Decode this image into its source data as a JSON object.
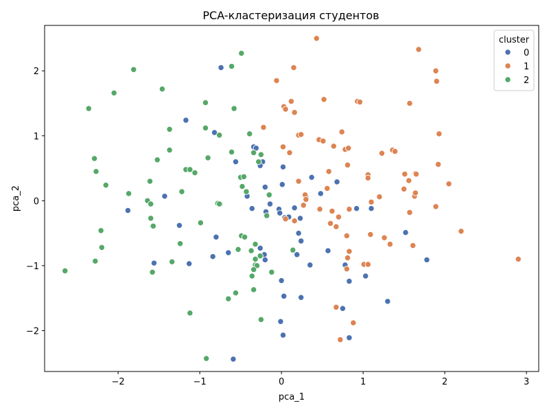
{
  "chart_data": {
    "type": "scatter",
    "title": "PCA-кластеризация студентов",
    "xlabel": "pca_1",
    "ylabel": "pca_2",
    "xlim": [
      -2.9,
      3.15
    ],
    "ylim": [
      -2.63,
      2.7
    ],
    "xticks": [
      -2,
      -1,
      0,
      1,
      2,
      3
    ],
    "yticks": [
      -2,
      -1,
      0,
      1,
      2
    ],
    "xtick_labels": [
      "−2",
      "−1",
      "0",
      "1",
      "2",
      "3"
    ],
    "ytick_labels": [
      "−2",
      "−1",
      "0",
      "1",
      "2"
    ],
    "grid": false,
    "legend": {
      "title": "cluster",
      "placement": "top-right",
      "entries": [
        "0",
        "1",
        "2"
      ]
    },
    "series": [
      {
        "name": "0",
        "color": "#4c72b0",
        "points": [
          [
            -0.74,
            2.05
          ],
          [
            -1.17,
            1.24
          ],
          [
            -0.82,
            1.05
          ],
          [
            -0.34,
            0.83
          ],
          [
            -0.31,
            0.81
          ],
          [
            -0.23,
            0.6
          ],
          [
            -0.26,
            0.54
          ],
          [
            -0.56,
            0.6
          ],
          [
            -0.2,
            0.21
          ],
          [
            0.02,
            0.52
          ],
          [
            0.01,
            0.25
          ],
          [
            0.37,
            0.36
          ],
          [
            0.3,
            0.06
          ],
          [
            0.48,
            0.11
          ],
          [
            0.68,
            0.29
          ],
          [
            -0.75,
            -0.05
          ],
          [
            -0.42,
            0.07
          ],
          [
            -0.36,
            -0.12
          ],
          [
            -1.88,
            -0.15
          ],
          [
            -1.43,
            0.07
          ],
          [
            -0.19,
            -0.17
          ],
          [
            -0.14,
            -0.05
          ],
          [
            -0.03,
            -0.13
          ],
          [
            -0.02,
            -0.19
          ],
          [
            0.04,
            -0.26
          ],
          [
            0.09,
            -0.25
          ],
          [
            0.16,
            -0.11
          ],
          [
            0.23,
            -0.27
          ],
          [
            0.92,
            -0.12
          ],
          [
            1.1,
            -0.12
          ],
          [
            -1.25,
            -0.38
          ],
          [
            -0.8,
            -0.56
          ],
          [
            -0.65,
            -0.8
          ],
          [
            -0.84,
            -0.86
          ],
          [
            -0.26,
            -0.73
          ],
          [
            -0.21,
            -0.83
          ],
          [
            -0.2,
            -0.91
          ],
          [
            0.19,
            -0.83
          ],
          [
            0.21,
            -0.5
          ],
          [
            0.24,
            -0.62
          ],
          [
            0.35,
            -0.99
          ],
          [
            0.57,
            -0.77
          ],
          [
            0.78,
            -0.99
          ],
          [
            1.03,
            -1.16
          ],
          [
            -1.13,
            -0.97
          ],
          [
            -1.56,
            -0.96
          ],
          [
            0.0,
            -1.23
          ],
          [
            0.03,
            -1.47
          ],
          [
            0.24,
            -1.49
          ],
          [
            0.75,
            -1.66
          ],
          [
            0.83,
            -1.24
          ],
          [
            1.3,
            -1.55
          ],
          [
            1.52,
            -0.49
          ],
          [
            1.78,
            -0.91
          ],
          [
            -0.01,
            -1.86
          ],
          [
            0.02,
            -2.07
          ],
          [
            0.83,
            -2.11
          ],
          [
            -0.59,
            -2.44
          ]
        ]
      },
      {
        "name": "1",
        "color": "#dd8452",
        "points": [
          [
            0.43,
            2.5
          ],
          [
            1.68,
            2.33
          ],
          [
            1.89,
            2.0
          ],
          [
            -0.06,
            1.85
          ],
          [
            0.15,
            2.05
          ],
          [
            1.9,
            1.84
          ],
          [
            0.52,
            1.56
          ],
          [
            0.12,
            1.53
          ],
          [
            0.03,
            1.45
          ],
          [
            0.05,
            1.41
          ],
          [
            0.16,
            1.36
          ],
          [
            0.93,
            1.53
          ],
          [
            0.96,
            1.52
          ],
          [
            1.57,
            1.5
          ],
          [
            -0.22,
            1.13
          ],
          [
            0.74,
            1.06
          ],
          [
            0.21,
            1.01
          ],
          [
            0.24,
            1.02
          ],
          [
            0.46,
            0.94
          ],
          [
            0.51,
            0.92
          ],
          [
            0.64,
            0.84
          ],
          [
            0.78,
            0.79
          ],
          [
            0.82,
            0.81
          ],
          [
            1.23,
            0.73
          ],
          [
            1.93,
            1.03
          ],
          [
            1.36,
            0.78
          ],
          [
            1.39,
            0.76
          ],
          [
            0.02,
            0.83
          ],
          [
            0.1,
            0.74
          ],
          [
            0.81,
            0.55
          ],
          [
            1.92,
            0.56
          ],
          [
            0.58,
            0.45
          ],
          [
            1.06,
            0.4
          ],
          [
            1.06,
            0.35
          ],
          [
            1.51,
            0.41
          ],
          [
            1.56,
            0.31
          ],
          [
            1.64,
            0.42
          ],
          [
            1.65,
            0.41
          ],
          [
            1.63,
            0.07
          ],
          [
            2.05,
            0.26
          ],
          [
            0.21,
            0.3
          ],
          [
            0.29,
            0.09
          ],
          [
            0.3,
            0.02
          ],
          [
            0.56,
            0.19
          ],
          [
            1.2,
            0.06
          ],
          [
            1.5,
            0.18
          ],
          [
            1.64,
            0.12
          ],
          [
            1.1,
            -0.02
          ],
          [
            0.27,
            -0.07
          ],
          [
            0.47,
            -0.13
          ],
          [
            0.62,
            -0.16
          ],
          [
            0.83,
            -0.13
          ],
          [
            1.57,
            -0.18
          ],
          [
            1.89,
            -0.09
          ],
          [
            0.05,
            -0.28
          ],
          [
            0.16,
            -0.31
          ],
          [
            0.6,
            -0.35
          ],
          [
            0.67,
            -0.4
          ],
          [
            0.7,
            -0.25
          ],
          [
            1.09,
            -0.52
          ],
          [
            1.26,
            -0.57
          ],
          [
            1.33,
            -0.67
          ],
          [
            1.61,
            -0.69
          ],
          [
            2.2,
            -0.47
          ],
          [
            0.8,
            -0.54
          ],
          [
            0.83,
            -0.78
          ],
          [
            0.81,
            -0.88
          ],
          [
            1.01,
            -0.98
          ],
          [
            1.06,
            -0.98
          ],
          [
            0.8,
            -1.05
          ],
          [
            0.67,
            -1.64
          ],
          [
            0.88,
            -1.88
          ],
          [
            0.72,
            -2.14
          ],
          [
            2.9,
            -0.9
          ]
        ]
      },
      {
        "name": "2",
        "color": "#55a868",
        "points": [
          [
            -0.49,
            2.27
          ],
          [
            -0.61,
            2.07
          ],
          [
            -1.81,
            2.02
          ],
          [
            -1.46,
            1.72
          ],
          [
            -2.05,
            1.66
          ],
          [
            -0.93,
            1.51
          ],
          [
            -2.36,
            1.42
          ],
          [
            -0.58,
            1.42
          ],
          [
            -1.37,
            1.1
          ],
          [
            -0.93,
            1.12
          ],
          [
            -0.76,
            1.01
          ],
          [
            -0.39,
            1.03
          ],
          [
            -1.37,
            0.78
          ],
          [
            -0.61,
            0.75
          ],
          [
            -0.34,
            0.74
          ],
          [
            -0.25,
            0.71
          ],
          [
            -2.29,
            0.65
          ],
          [
            -1.52,
            0.63
          ],
          [
            -0.9,
            0.66
          ],
          [
            -0.28,
            0.6
          ],
          [
            -2.27,
            0.45
          ],
          [
            -1.17,
            0.48
          ],
          [
            -1.12,
            0.48
          ],
          [
            -1.06,
            0.43
          ],
          [
            -0.5,
            0.36
          ],
          [
            -0.46,
            0.37
          ],
          [
            -1.61,
            0.3
          ],
          [
            -2.15,
            0.24
          ],
          [
            -0.48,
            0.22
          ],
          [
            -1.22,
            0.14
          ],
          [
            -0.43,
            0.14
          ],
          [
            -0.15,
            0.09
          ],
          [
            -1.87,
            0.11
          ],
          [
            -1.64,
            0.0
          ],
          [
            -1.6,
            -0.05
          ],
          [
            -0.78,
            -0.04
          ],
          [
            -0.76,
            -0.05
          ],
          [
            -0.18,
            -0.23
          ],
          [
            -1.6,
            -0.27
          ],
          [
            -1.58,
            -0.39
          ],
          [
            -1.57,
            -0.39
          ],
          [
            -0.99,
            -0.34
          ],
          [
            -2.21,
            -0.46
          ],
          [
            -0.49,
            -0.54
          ],
          [
            -0.45,
            -0.56
          ],
          [
            -1.24,
            -0.66
          ],
          [
            -0.32,
            -0.67
          ],
          [
            -2.2,
            -0.72
          ],
          [
            -0.53,
            -0.75
          ],
          [
            -0.37,
            -0.77
          ],
          [
            0.14,
            -0.76
          ],
          [
            -0.26,
            -0.85
          ],
          [
            -0.32,
            -0.9
          ],
          [
            -2.28,
            -0.93
          ],
          [
            -1.34,
            -0.94
          ],
          [
            -0.32,
            -0.99
          ],
          [
            -0.3,
            -1.0
          ],
          [
            -0.34,
            -1.06
          ],
          [
            -0.12,
            -1.1
          ],
          [
            -0.36,
            -1.16
          ],
          [
            -2.65,
            -1.08
          ],
          [
            -1.58,
            -1.1
          ],
          [
            -0.34,
            -1.37
          ],
          [
            -0.56,
            -1.42
          ],
          [
            -0.65,
            -1.51
          ],
          [
            -1.12,
            -1.73
          ],
          [
            -0.25,
            -1.83
          ],
          [
            -0.92,
            -2.43
          ]
        ]
      }
    ]
  }
}
